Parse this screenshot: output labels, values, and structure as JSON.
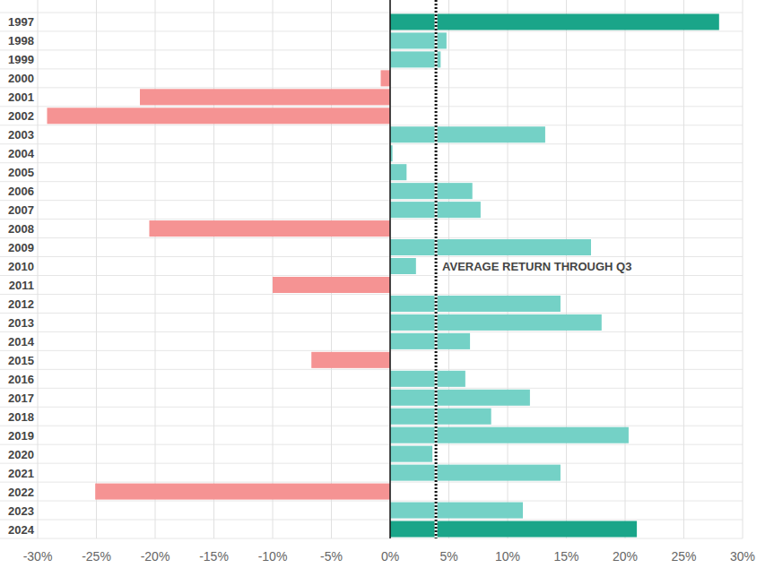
{
  "chart_data": {
    "type": "bar",
    "orientation": "horizontal",
    "categories": [
      "1997",
      "1998",
      "1999",
      "2000",
      "2001",
      "2002",
      "2003",
      "2004",
      "2005",
      "2006",
      "2007",
      "2008",
      "2009",
      "2010",
      "2011",
      "2012",
      "2013",
      "2014",
      "2015",
      "2016",
      "2017",
      "2018",
      "2019",
      "2020",
      "2021",
      "2022",
      "2023",
      "2024"
    ],
    "values": [
      28.0,
      4.8,
      4.3,
      -0.8,
      -21.3,
      -29.2,
      13.2,
      0.2,
      1.4,
      7.0,
      7.7,
      -20.5,
      17.1,
      2.2,
      -10.0,
      14.5,
      18.0,
      6.8,
      -6.7,
      6.4,
      11.9,
      8.6,
      20.3,
      3.6,
      14.5,
      -25.1,
      11.3,
      21.0
    ],
    "colors": [
      "#1aa589",
      "#74d1c6",
      "#74d1c6",
      "#f59393",
      "#f59393",
      "#f59393",
      "#74d1c6",
      "#74d1c6",
      "#74d1c6",
      "#74d1c6",
      "#74d1c6",
      "#f59393",
      "#74d1c6",
      "#74d1c6",
      "#f59393",
      "#74d1c6",
      "#74d1c6",
      "#74d1c6",
      "#f59393",
      "#74d1c6",
      "#74d1c6",
      "#74d1c6",
      "#74d1c6",
      "#74d1c6",
      "#74d1c6",
      "#f59393",
      "#74d1c6",
      "#1aa589"
    ],
    "xlim": [
      -30,
      30
    ],
    "xticks": [
      {
        "value": -30,
        "label": "-30%"
      },
      {
        "value": -25,
        "label": "-25%"
      },
      {
        "value": -20,
        "label": "-20%"
      },
      {
        "value": -15,
        "label": "-15%"
      },
      {
        "value": -10,
        "label": "-10%"
      },
      {
        "value": -5,
        "label": "-5%"
      },
      {
        "value": 0,
        "label": "0%"
      },
      {
        "value": 5,
        "label": "5%"
      },
      {
        "value": 10,
        "label": "10%"
      },
      {
        "value": 15,
        "label": "15%"
      },
      {
        "value": 20,
        "label": "20%"
      },
      {
        "value": 25,
        "label": "25%"
      },
      {
        "value": 30,
        "label": "30%"
      }
    ],
    "grid": true,
    "annotations": [
      {
        "text": "AVERAGE RETURN THROUGH Q3",
        "value": 3.9
      }
    ]
  }
}
